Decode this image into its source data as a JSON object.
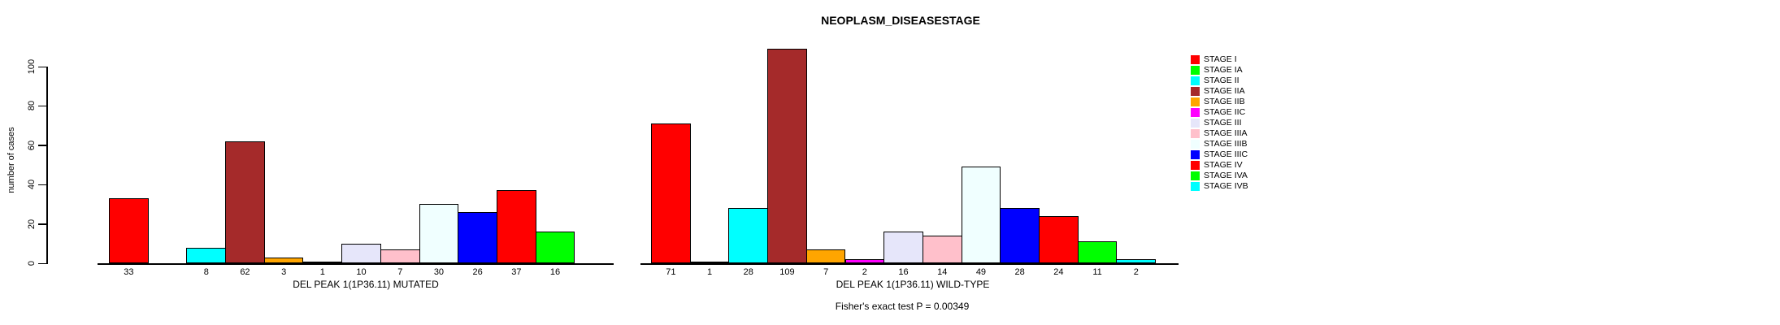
{
  "title": "NEOPLASM_DISEASESTAGE",
  "footer": "Fisher's exact test P = 0.00349",
  "ylabel": "number of cases",
  "chart_data": {
    "type": "bar",
    "title": "NEOPLASM_DISEASESTAGE",
    "xlabel": "",
    "ylabel": "number of cases",
    "ylim": [
      0,
      100
    ],
    "yticks": [
      0,
      20,
      40,
      60,
      80,
      100
    ],
    "grid": false,
    "legend_position": "right",
    "categories": [
      "STAGE I",
      "STAGE IA",
      "STAGE II",
      "STAGE IIA",
      "STAGE IIB",
      "STAGE IIC",
      "STAGE III",
      "STAGE IIIA",
      "STAGE IIIB",
      "STAGE IIIC",
      "STAGE IV",
      "STAGE IVA",
      "STAGE IVB"
    ],
    "colors": [
      "#FF0000",
      "#00FF00",
      "#00FFFF",
      "#A52A2A",
      "#FFA500",
      "#FF00FF",
      "#E6E6FA",
      "#FFC0CB",
      "#F0FFFF",
      "#0000FF",
      "#FF0000",
      "#00FF00",
      "#00FFFF"
    ],
    "groups": [
      {
        "label": "DEL PEAK  1(1P36.11) MUTATED",
        "values": [
          33,
          0,
          8,
          62,
          3,
          1,
          10,
          7,
          30,
          26,
          37,
          16,
          0
        ]
      },
      {
        "label": "DEL PEAK  1(1P36.11) WILD-TYPE",
        "values": [
          71,
          1,
          28,
          109,
          7,
          2,
          16,
          14,
          49,
          28,
          24,
          11,
          2
        ]
      }
    ],
    "annotations": [
      "Fisher's exact test P = 0.00349"
    ],
    "bar_border_color": "#000000"
  },
  "legend": {
    "items": [
      {
        "label": "STAGE I",
        "color": "#FF0000"
      },
      {
        "label": "STAGE IA",
        "color": "#00FF00"
      },
      {
        "label": "STAGE II",
        "color": "#00FFFF"
      },
      {
        "label": "STAGE IIA",
        "color": "#A52A2A"
      },
      {
        "label": "STAGE IIB",
        "color": "#FFA500"
      },
      {
        "label": "STAGE IIC",
        "color": "#FF00FF"
      },
      {
        "label": "STAGE III",
        "color": "#E6E6FA"
      },
      {
        "label": "STAGE IIIA",
        "color": "#FFC0CB"
      },
      {
        "label": "STAGE IIIB",
        "color": "#F0FFFF"
      },
      {
        "label": "STAGE IIIC",
        "color": "#0000FF"
      },
      {
        "label": "STAGE IV",
        "color": "#FF0000"
      },
      {
        "label": "STAGE IVA",
        "color": "#00FF00"
      },
      {
        "label": "STAGE IVB",
        "color": "#00FFFF"
      }
    ]
  }
}
